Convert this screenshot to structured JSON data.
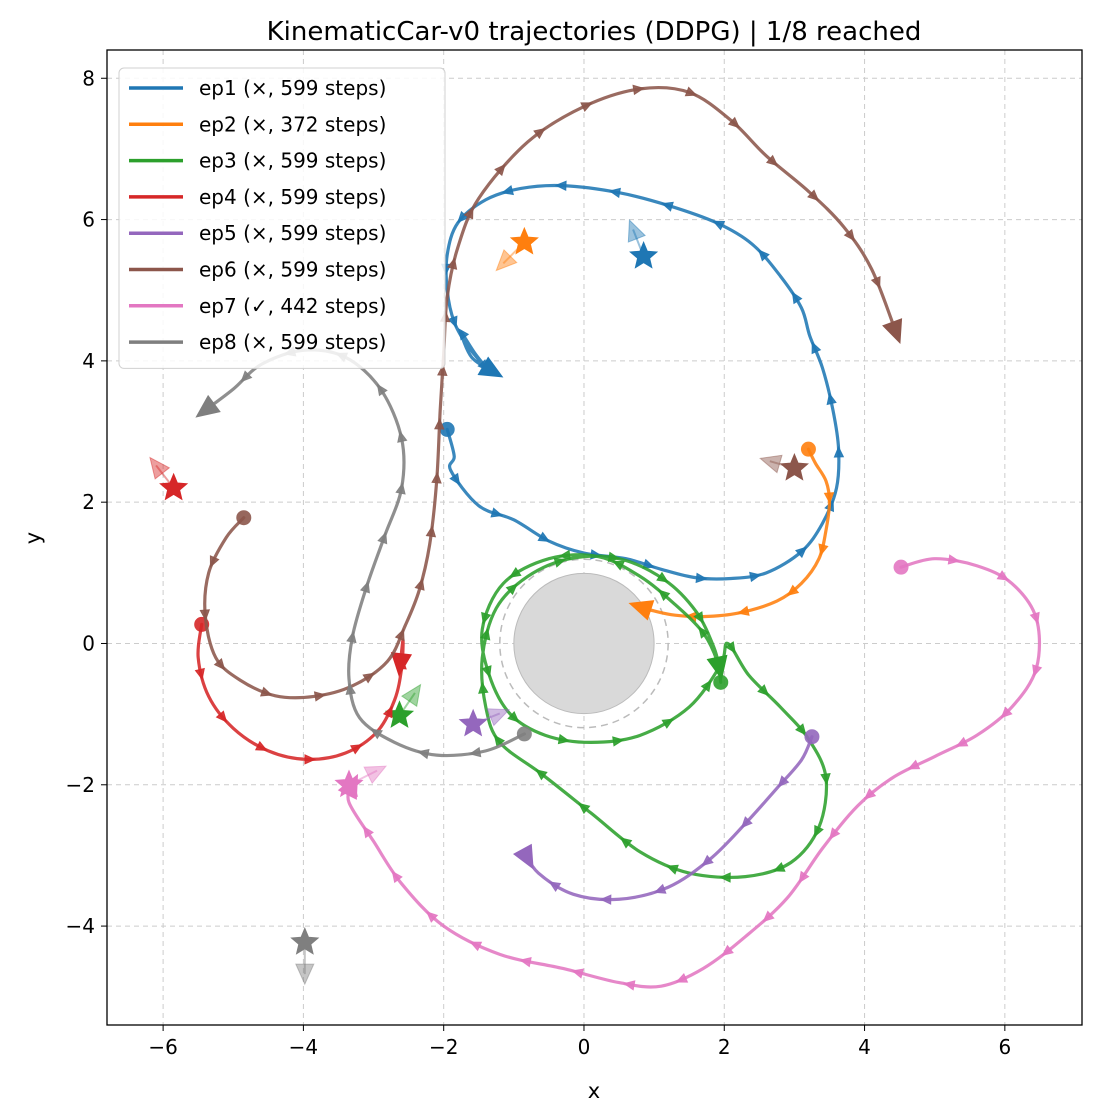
{
  "chart_data": {
    "type": "line",
    "title": "KinematicCar-v0 trajectories (DDPG) | 1/8 reached",
    "xlabel": "x",
    "ylabel": "y",
    "xlim": [
      -6.8,
      7.1
    ],
    "ylim": [
      -5.4,
      8.4
    ],
    "xticks": [
      -6,
      -4,
      -2,
      0,
      2,
      4,
      6
    ],
    "yticks": [
      -4,
      -2,
      0,
      2,
      4,
      6,
      8
    ],
    "xtick_labels": [
      "−6",
      "−4",
      "−2",
      "0",
      "2",
      "4",
      "6"
    ],
    "ytick_labels": [
      "−4",
      "−2",
      "0",
      "2",
      "4",
      "6",
      "8"
    ],
    "grid": true,
    "legend_position": "upper-left",
    "obstacle": {
      "center": [
        0,
        0
      ],
      "radius": 1.0,
      "safety_radius": 1.2,
      "color": "#d9d9d9"
    },
    "series": [
      {
        "name": "ep1 (×, 599 steps)",
        "color": "#1f77b4",
        "start": [
          -1.95,
          3.03
        ],
        "goal": [
          0.85,
          5.48
        ],
        "goal_heading": [
          -0.15,
          0.38
        ],
        "points": [
          [
            -1.95,
            3.03
          ],
          [
            -1.85,
            2.65
          ],
          [
            -1.9,
            2.45
          ],
          [
            -1.5,
            1.95
          ],
          [
            -1.0,
            1.75
          ],
          [
            -0.5,
            1.45
          ],
          [
            0.0,
            1.28
          ],
          [
            0.6,
            1.2
          ],
          [
            1.1,
            1.05
          ],
          [
            1.6,
            0.93
          ],
          [
            2.1,
            0.92
          ],
          [
            2.6,
            1.0
          ],
          [
            3.1,
            1.3
          ],
          [
            3.4,
            1.7
          ],
          [
            3.6,
            2.2
          ],
          [
            3.63,
            2.75
          ],
          [
            3.55,
            3.3
          ],
          [
            3.4,
            3.9
          ],
          [
            3.22,
            4.35
          ],
          [
            3.1,
            4.75
          ],
          [
            2.8,
            5.2
          ],
          [
            2.4,
            5.65
          ],
          [
            1.9,
            5.95
          ],
          [
            1.2,
            6.2
          ],
          [
            0.5,
            6.38
          ],
          [
            -0.3,
            6.48
          ],
          [
            -0.9,
            6.44
          ],
          [
            -1.4,
            6.28
          ],
          [
            -1.8,
            5.95
          ],
          [
            -1.95,
            5.5
          ],
          [
            -1.95,
            5.0
          ],
          [
            -1.85,
            4.55
          ],
          [
            -1.65,
            4.2
          ],
          [
            -1.35,
            3.85
          ],
          [
            -1.55,
            4.1
          ],
          [
            -1.75,
            4.4
          ],
          [
            -1.6,
            4.05
          ],
          [
            -1.3,
            3.85
          ]
        ]
      },
      {
        "name": "ep2 (×, 372 steps)",
        "color": "#ff7f0e",
        "start": [
          3.2,
          2.75
        ],
        "goal": [
          -0.85,
          5.68
        ],
        "goal_heading": [
          -0.3,
          -0.3
        ],
        "points": [
          [
            3.2,
            2.75
          ],
          [
            3.3,
            2.55
          ],
          [
            3.45,
            2.3
          ],
          [
            3.5,
            2.0
          ],
          [
            3.45,
            1.6
          ],
          [
            3.35,
            1.2
          ],
          [
            3.1,
            0.85
          ],
          [
            2.75,
            0.6
          ],
          [
            2.2,
            0.43
          ],
          [
            1.7,
            0.38
          ],
          [
            1.3,
            0.4
          ],
          [
            1.0,
            0.46
          ],
          [
            0.8,
            0.52
          ]
        ]
      },
      {
        "name": "ep3 (×, 599 steps)",
        "color": "#2ca02c",
        "start": [
          1.95,
          -0.55
        ],
        "goal": [
          -2.63,
          -1.02
        ],
        "goal_heading": [
          0.22,
          0.32
        ],
        "points": [
          [
            1.95,
            -0.55
          ],
          [
            1.9,
            -0.25
          ],
          [
            1.7,
            0.15
          ],
          [
            1.3,
            0.55
          ],
          [
            0.8,
            0.95
          ],
          [
            0.2,
            1.23
          ],
          [
            -0.5,
            1.2
          ],
          [
            -1.15,
            0.85
          ],
          [
            -1.45,
            0.2
          ],
          [
            -1.35,
            -0.45
          ],
          [
            -1.05,
            -1.0
          ],
          [
            -0.55,
            -1.3
          ],
          [
            0.1,
            -1.4
          ],
          [
            0.8,
            -1.3
          ],
          [
            1.5,
            -0.9
          ],
          [
            1.95,
            -0.3
          ],
          [
            2.05,
            0.0
          ],
          [
            2.35,
            -0.45
          ],
          [
            2.8,
            -0.9
          ],
          [
            3.2,
            -1.35
          ],
          [
            3.45,
            -1.9
          ],
          [
            3.35,
            -2.6
          ],
          [
            2.95,
            -3.1
          ],
          [
            2.3,
            -3.3
          ],
          [
            1.5,
            -3.25
          ],
          [
            0.8,
            -2.95
          ],
          [
            0.1,
            -2.4
          ],
          [
            -0.6,
            -1.85
          ],
          [
            -1.2,
            -1.4
          ],
          [
            -1.4,
            -0.9
          ],
          [
            -1.45,
            -0.2
          ],
          [
            -1.25,
            0.5
          ],
          [
            -0.8,
            0.95
          ],
          [
            -0.2,
            1.2
          ],
          [
            0.5,
            1.2
          ],
          [
            1.15,
            0.9
          ],
          [
            1.6,
            0.45
          ],
          [
            1.85,
            -0.05
          ],
          [
            1.93,
            -0.35
          ]
        ]
      },
      {
        "name": "ep4 (×, 599 steps)",
        "color": "#d62728",
        "start": [
          -5.45,
          0.27
        ],
        "goal": [
          -5.85,
          2.2
        ],
        "goal_heading": [
          -0.25,
          0.32
        ],
        "points": [
          [
            -5.45,
            0.27
          ],
          [
            -5.5,
            -0.2
          ],
          [
            -5.35,
            -0.75
          ],
          [
            -5.0,
            -1.2
          ],
          [
            -4.5,
            -1.52
          ],
          [
            -3.95,
            -1.64
          ],
          [
            -3.4,
            -1.55
          ],
          [
            -2.95,
            -1.25
          ],
          [
            -2.7,
            -0.8
          ],
          [
            -2.6,
            -0.35
          ],
          [
            -2.58,
            0.05
          ],
          [
            -2.62,
            -0.3
          ]
        ]
      },
      {
        "name": "ep5 (×, 599 steps)",
        "color": "#9467bd",
        "start": [
          3.25,
          -1.32
        ],
        "goal": [
          -1.58,
          -1.14
        ],
        "goal_heading": [
          0.38,
          0.15
        ],
        "points": [
          [
            3.25,
            -1.32
          ],
          [
            3.1,
            -1.65
          ],
          [
            2.75,
            -2.05
          ],
          [
            2.3,
            -2.55
          ],
          [
            1.8,
            -3.05
          ],
          [
            1.2,
            -3.45
          ],
          [
            0.5,
            -3.62
          ],
          [
            -0.15,
            -3.55
          ],
          [
            -0.65,
            -3.25
          ],
          [
            -0.85,
            -2.95
          ],
          [
            -0.8,
            -3.05
          ]
        ]
      },
      {
        "name": "ep6 (×, 599 steps)",
        "color": "#8c564b",
        "start": [
          -4.85,
          1.78
        ],
        "goal": [
          3.0,
          2.48
        ],
        "goal_heading": [
          -0.35,
          0.1
        ],
        "points": [
          [
            -4.85,
            1.78
          ],
          [
            -5.1,
            1.5
          ],
          [
            -5.35,
            1.0
          ],
          [
            -5.4,
            0.4
          ],
          [
            -5.25,
            -0.2
          ],
          [
            -4.9,
            -0.52
          ],
          [
            -4.4,
            -0.74
          ],
          [
            -3.85,
            -0.75
          ],
          [
            -3.3,
            -0.6
          ],
          [
            -2.8,
            -0.25
          ],
          [
            -2.55,
            0.25
          ],
          [
            -2.35,
            0.75
          ],
          [
            -2.2,
            1.4
          ],
          [
            -2.1,
            2.3
          ],
          [
            -2.05,
            3.3
          ],
          [
            -2.0,
            4.1
          ],
          [
            -1.95,
            4.9
          ],
          [
            -1.8,
            5.6
          ],
          [
            -1.5,
            6.3
          ],
          [
            -0.8,
            7.1
          ],
          [
            0.0,
            7.6
          ],
          [
            0.8,
            7.85
          ],
          [
            1.5,
            7.8
          ],
          [
            2.1,
            7.4
          ],
          [
            2.6,
            6.9
          ],
          [
            3.2,
            6.4
          ],
          [
            3.7,
            5.9
          ],
          [
            4.1,
            5.3
          ],
          [
            4.45,
            4.4
          ]
        ]
      },
      {
        "name": "ep7 (✓, 442 steps)",
        "color": "#e377c2",
        "start": [
          4.52,
          1.08
        ],
        "goal": [
          -3.35,
          -2.0
        ],
        "goal_heading": [
          0.4,
          0.2
        ],
        "points": [
          [
            4.52,
            1.08
          ],
          [
            5.0,
            1.2
          ],
          [
            5.6,
            1.1
          ],
          [
            6.1,
            0.85
          ],
          [
            6.45,
            0.35
          ],
          [
            6.45,
            -0.35
          ],
          [
            6.1,
            -0.9
          ],
          [
            5.6,
            -1.3
          ],
          [
            5.0,
            -1.6
          ],
          [
            4.4,
            -1.9
          ],
          [
            3.9,
            -2.3
          ],
          [
            3.4,
            -2.9
          ],
          [
            2.9,
            -3.6
          ],
          [
            2.3,
            -4.15
          ],
          [
            1.7,
            -4.6
          ],
          [
            1.1,
            -4.85
          ],
          [
            0.5,
            -4.8
          ],
          [
            -0.3,
            -4.6
          ],
          [
            -1.2,
            -4.4
          ],
          [
            -2.0,
            -4.0
          ],
          [
            -2.6,
            -3.4
          ],
          [
            -3.0,
            -2.8
          ],
          [
            -3.35,
            -2.25
          ],
          [
            -3.3,
            -2.0
          ]
        ]
      },
      {
        "name": "ep8 (×, 599 steps)",
        "color": "#7f7f7f",
        "start": [
          -0.85,
          -1.28
        ],
        "goal": [
          -3.98,
          -4.23
        ],
        "goal_heading": [
          0.0,
          -0.45
        ],
        "points": [
          [
            -0.85,
            -1.28
          ],
          [
            -1.4,
            -1.52
          ],
          [
            -2.1,
            -1.58
          ],
          [
            -2.7,
            -1.4
          ],
          [
            -3.2,
            -1.05
          ],
          [
            -3.35,
            -0.5
          ],
          [
            -3.3,
            0.1
          ],
          [
            -3.1,
            0.8
          ],
          [
            -2.85,
            1.5
          ],
          [
            -2.6,
            2.2
          ],
          [
            -2.6,
            2.9
          ],
          [
            -2.9,
            3.6
          ],
          [
            -3.4,
            4.05
          ],
          [
            -4.0,
            4.15
          ],
          [
            -4.6,
            3.95
          ],
          [
            -5.0,
            3.6
          ],
          [
            -5.4,
            3.3
          ]
        ]
      }
    ]
  }
}
